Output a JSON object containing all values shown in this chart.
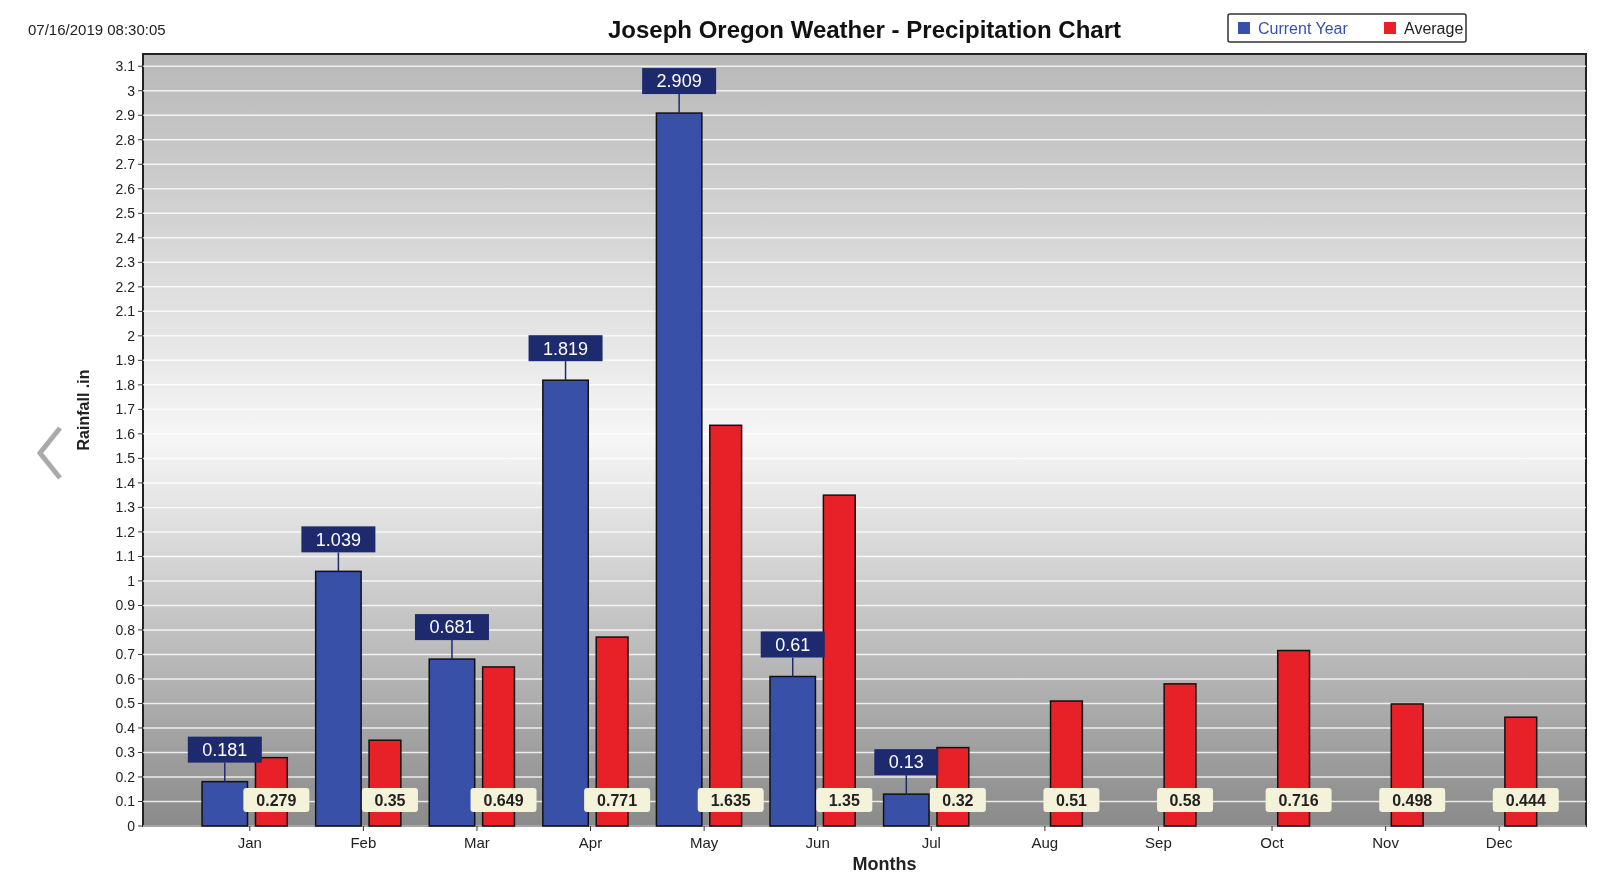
{
  "chart_data": {
    "type": "bar",
    "title": "Joseph Oregon Weather - Precipitation Chart",
    "xlabel": "Months",
    "ylabel": "Rainfall .in",
    "annotations": [
      "07/16/2019 08:30:05"
    ],
    "categories": [
      "Jan",
      "Feb",
      "Mar",
      "Apr",
      "May",
      "Jun",
      "Jul",
      "Aug",
      "Sep",
      "Oct",
      "Nov",
      "Dec"
    ],
    "series": [
      {
        "name": "Current Year",
        "color": "#3850a8",
        "values": [
          0.181,
          1.039,
          0.681,
          1.819,
          2.909,
          0.61,
          0.13,
          null,
          null,
          null,
          null,
          null
        ]
      },
      {
        "name": "Average",
        "color": "#e82028",
        "values": [
          0.279,
          0.35,
          0.649,
          0.771,
          1.635,
          1.35,
          0.32,
          0.51,
          0.58,
          0.716,
          0.498,
          0.444
        ]
      }
    ],
    "ylim": [
      0,
      3.15
    ],
    "yticks": [
      0,
      0.1,
      0.2,
      0.3,
      0.4,
      0.5,
      0.6,
      0.7,
      0.8,
      0.9,
      1,
      1.1,
      1.2,
      1.3,
      1.4,
      1.5,
      1.6,
      1.7,
      1.8,
      1.9,
      2,
      2.1,
      2.2,
      2.3,
      2.4,
      2.5,
      2.6,
      2.7,
      2.8,
      2.9,
      3,
      3.1
    ],
    "grid": "y",
    "legend": "top right",
    "data_labels": true
  }
}
